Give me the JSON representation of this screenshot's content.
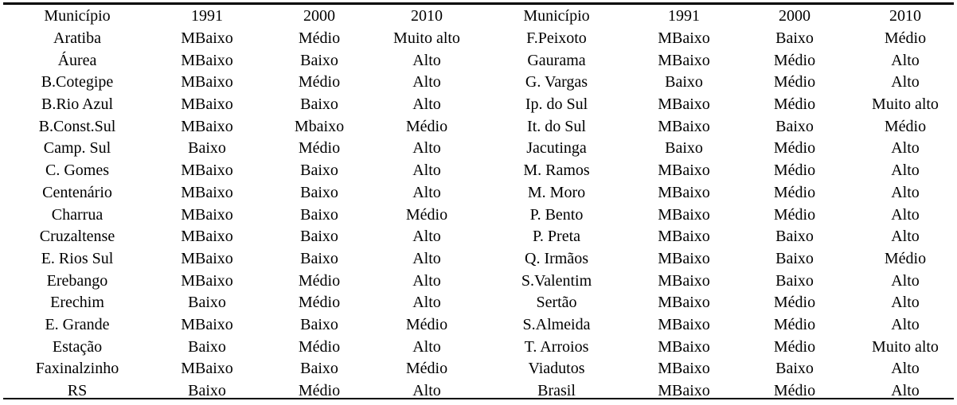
{
  "headers": [
    "Município",
    "1991",
    "2000",
    "2010",
    "Município",
    "1991",
    "2000",
    "2010"
  ],
  "rows": [
    [
      "Aratiba",
      "MBaixo",
      "Médio",
      "Muito alto",
      "F.Peixoto",
      "MBaixo",
      "Baixo",
      "Médio"
    ],
    [
      "Áurea",
      "MBaixo",
      "Baixo",
      "Alto",
      "Gaurama",
      "MBaixo",
      "Médio",
      "Alto"
    ],
    [
      "B.Cotegipe",
      "MBaixo",
      "Médio",
      "Alto",
      "G. Vargas",
      "Baixo",
      "Médio",
      "Alto"
    ],
    [
      "B.Rio Azul",
      "MBaixo",
      "Baixo",
      "Alto",
      "Ip. do Sul",
      "MBaixo",
      "Médio",
      "Muito alto"
    ],
    [
      "B.Const.Sul",
      "MBaixo",
      "Mbaixo",
      "Médio",
      "It. do Sul",
      "MBaixo",
      "Baixo",
      "Médio"
    ],
    [
      "Camp. Sul",
      "Baixo",
      "Médio",
      "Alto",
      "Jacutinga",
      "Baixo",
      "Médio",
      "Alto"
    ],
    [
      "C. Gomes",
      "MBaixo",
      "Baixo",
      "Alto",
      "M. Ramos",
      "MBaixo",
      "Médio",
      "Alto"
    ],
    [
      "Centenário",
      "MBaixo",
      "Baixo",
      "Alto",
      "M. Moro",
      "MBaixo",
      "Médio",
      "Alto"
    ],
    [
      "Charrua",
      "MBaixo",
      "Baixo",
      "Médio",
      "P. Bento",
      "MBaixo",
      "Médio",
      "Alto"
    ],
    [
      "Cruzaltense",
      "MBaixo",
      "Baixo",
      "Alto",
      "P. Preta",
      "MBaixo",
      "Baixo",
      "Alto"
    ],
    [
      "E. Rios Sul",
      "MBaixo",
      "Baixo",
      "Alto",
      "Q. Irmãos",
      "MBaixo",
      "Baixo",
      "Médio"
    ],
    [
      "Erebango",
      "MBaixo",
      "Médio",
      "Alto",
      "S.Valentim",
      "MBaixo",
      "Baixo",
      "Alto"
    ],
    [
      "Erechim",
      "Baixo",
      "Médio",
      "Alto",
      "Sertão",
      "MBaixo",
      "Médio",
      "Alto"
    ],
    [
      "E. Grande",
      "MBaixo",
      "Baixo",
      "Médio",
      "S.Almeida",
      "MBaixo",
      "Médio",
      "Alto"
    ],
    [
      "Estação",
      "Baixo",
      "Médio",
      "Alto",
      "T. Arroios",
      "MBaixo",
      "Médio",
      "Muito alto"
    ],
    [
      "Faxinalzinho",
      "MBaixo",
      "Baixo",
      "Médio",
      "Viadutos",
      "MBaixo",
      "Baixo",
      "Alto"
    ],
    [
      "RS",
      "Baixo",
      "Médio",
      "Alto",
      "Brasil",
      "MBaixo",
      "Médio",
      "Alto"
    ]
  ]
}
